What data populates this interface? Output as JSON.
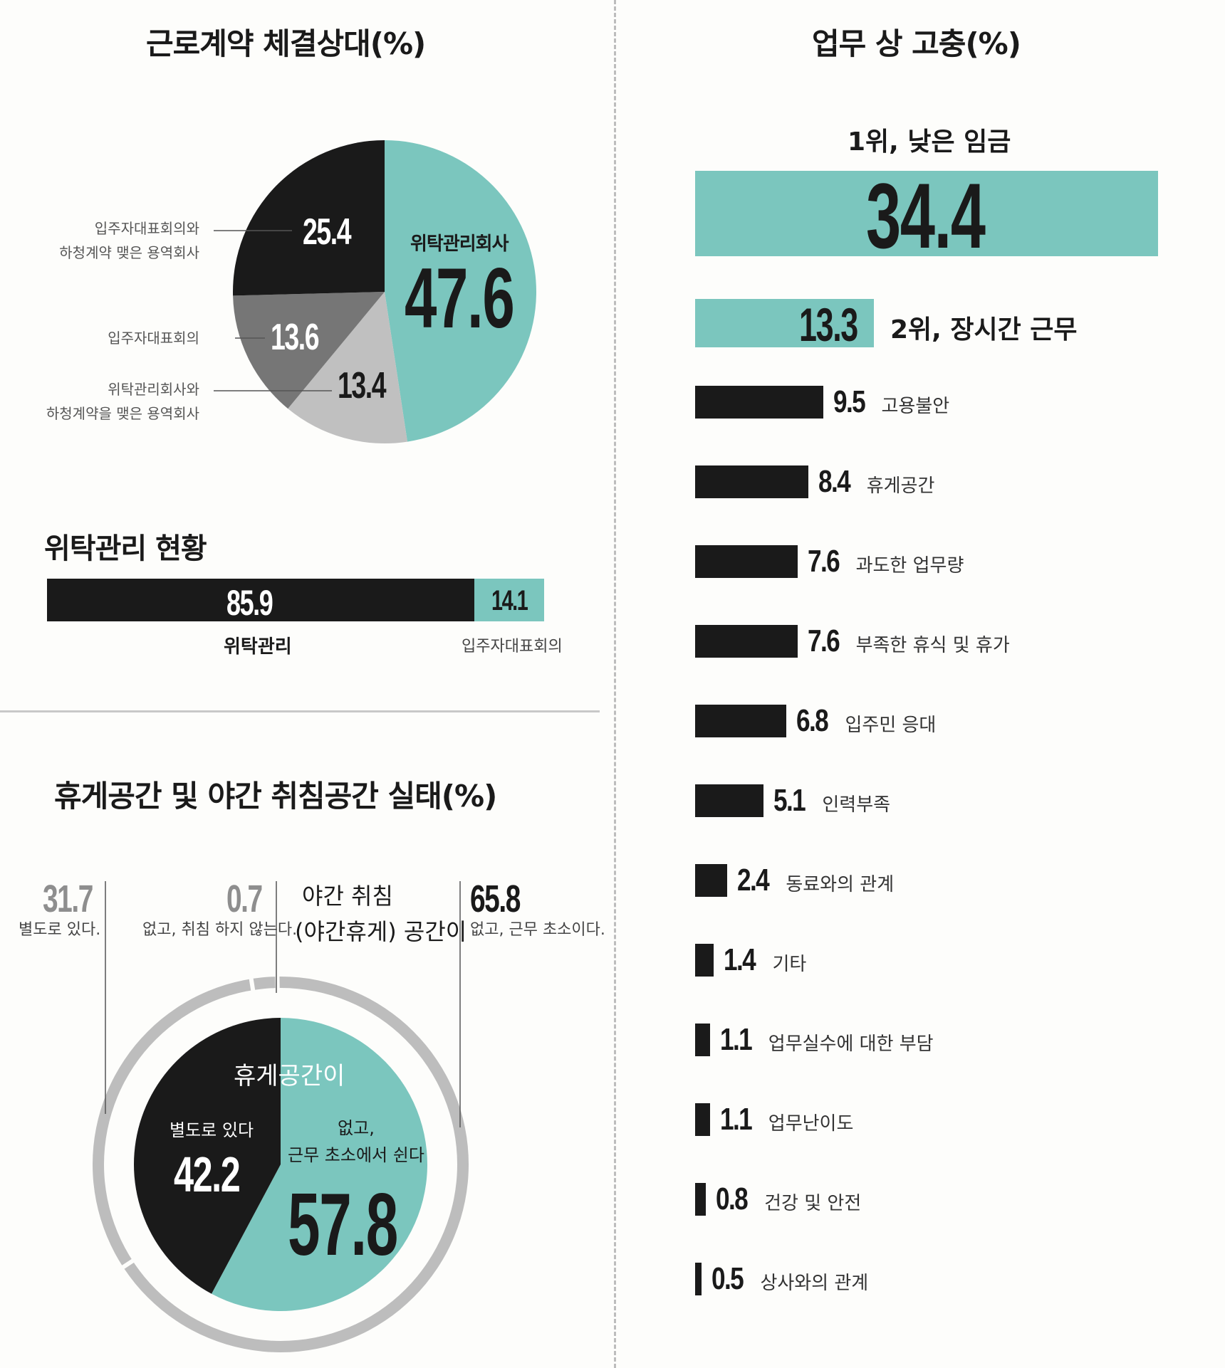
{
  "colors": {
    "teal": "#7bc6be",
    "black": "#1a1a1a",
    "gray_dark": "#767676",
    "gray_light": "#c0c0c0",
    "ring": "#bdbdbd"
  },
  "contract": {
    "title": "근로계약 체결상대(%)",
    "chart_data": {
      "type": "pie",
      "title": "근로계약 체결상대(%)",
      "slices": [
        {
          "label": "위탁관리회사",
          "value": 47.6,
          "color": "#7bc6be"
        },
        {
          "label": "위탁관리회사와 하청계약을 맺은 용역회사",
          "value": 13.4,
          "color": "#c0c0c0"
        },
        {
          "label": "입주자대표회의",
          "value": 13.6,
          "color": "#767676"
        },
        {
          "label": "입주자대표회의와 하청계약 맺은 용역회사",
          "value": 25.4,
          "color": "#1a1a1a"
        }
      ]
    },
    "label_teal": "위탁관리회사",
    "val_teal": "47.6",
    "val_black": "25.4",
    "val_darkgray": "13.6",
    "val_lightgray": "13.4",
    "ann_black_1": "입주자대표회의와",
    "ann_black_2": "하청계약 맺은 용역회사",
    "ann_darkgray": "입주자대표회의",
    "ann_lightgray_1": "위탁관리회사와",
    "ann_lightgray_2": "하청계약을 맺은 용역회사"
  },
  "status": {
    "title": "위탁관리 현황",
    "chart_data": {
      "type": "bar",
      "orientation": "stacked-horizontal",
      "categories": [
        "위탁관리",
        "입주자대표회의"
      ],
      "values": [
        85.9,
        14.1
      ]
    },
    "val_1": "85.9",
    "val_2": "14.1",
    "label_1": "위탁관리",
    "label_2": "입주자대표회의"
  },
  "rest": {
    "title": "휴게공간 및 야간 취침공간 실태(%)",
    "chart_data": [
      {
        "type": "pie",
        "title": "휴게공간이",
        "slices": [
          {
            "label": "별도로 있다",
            "value": 42.2,
            "color": "#1a1a1a"
          },
          {
            "label": "없고, 근무 초소에서 쉰다",
            "value": 57.8,
            "color": "#7bc6be"
          }
        ]
      },
      {
        "type": "pie",
        "title": "야간 취침 (야간휴게) 공간이",
        "slices": [
          {
            "label": "별도로 있다.",
            "value": 31.7
          },
          {
            "label": "없고, 취침 하지 않는다.",
            "value": 0.7
          },
          {
            "label": "없고, 근무 초소이다.",
            "value": 65.8
          }
        ]
      }
    ],
    "inner_title": "휴게공간이",
    "inner_black_label": "별도로 있다",
    "inner_black_val": "42.2",
    "inner_teal_label_1": "없고,",
    "inner_teal_label_2": "근무 초소에서 쉰다",
    "inner_teal_val": "57.8",
    "outer_val_1": "31.7",
    "outer_label_1": "별도로 있다.",
    "outer_val_2": "0.7",
    "outer_label_2": "없고, 취침 하지 않는다.",
    "outer_title_1": "야간 취침",
    "outer_title_2": "(야간휴게) 공간이",
    "outer_val_3": "65.8",
    "outer_label_3": "없고, 근무 초소이다."
  },
  "hardship": {
    "title": "업무 상 고충(%)",
    "top_label": "1위, 낮은 임금",
    "second_label": "2위, 장시간 근무",
    "chart_data": {
      "type": "bar",
      "orientation": "horizontal",
      "title": "업무 상 고충(%)",
      "categories": [
        "낮은 임금",
        "장시간 근무",
        "고용불안",
        "휴게공간",
        "과도한 업무량",
        "부족한 휴식 및 휴가",
        "입주민 응대",
        "인력부족",
        "동료와의 관계",
        "기타",
        "업무실수에 대한 부담",
        "업무난이도",
        "건강 및 안전",
        "상사와의 관계"
      ],
      "values": [
        34.4,
        13.3,
        9.5,
        8.4,
        7.6,
        7.6,
        6.8,
        5.1,
        2.4,
        1.4,
        1.1,
        1.1,
        0.8,
        0.5
      ],
      "value_labels": [
        "34.4",
        "13.3",
        "9.5",
        "8.4",
        "7.6",
        "7.6",
        "6.8",
        "5.1",
        "2.4",
        "1.4",
        "1.1",
        "1.1",
        "0.8",
        "0.5"
      ]
    }
  }
}
